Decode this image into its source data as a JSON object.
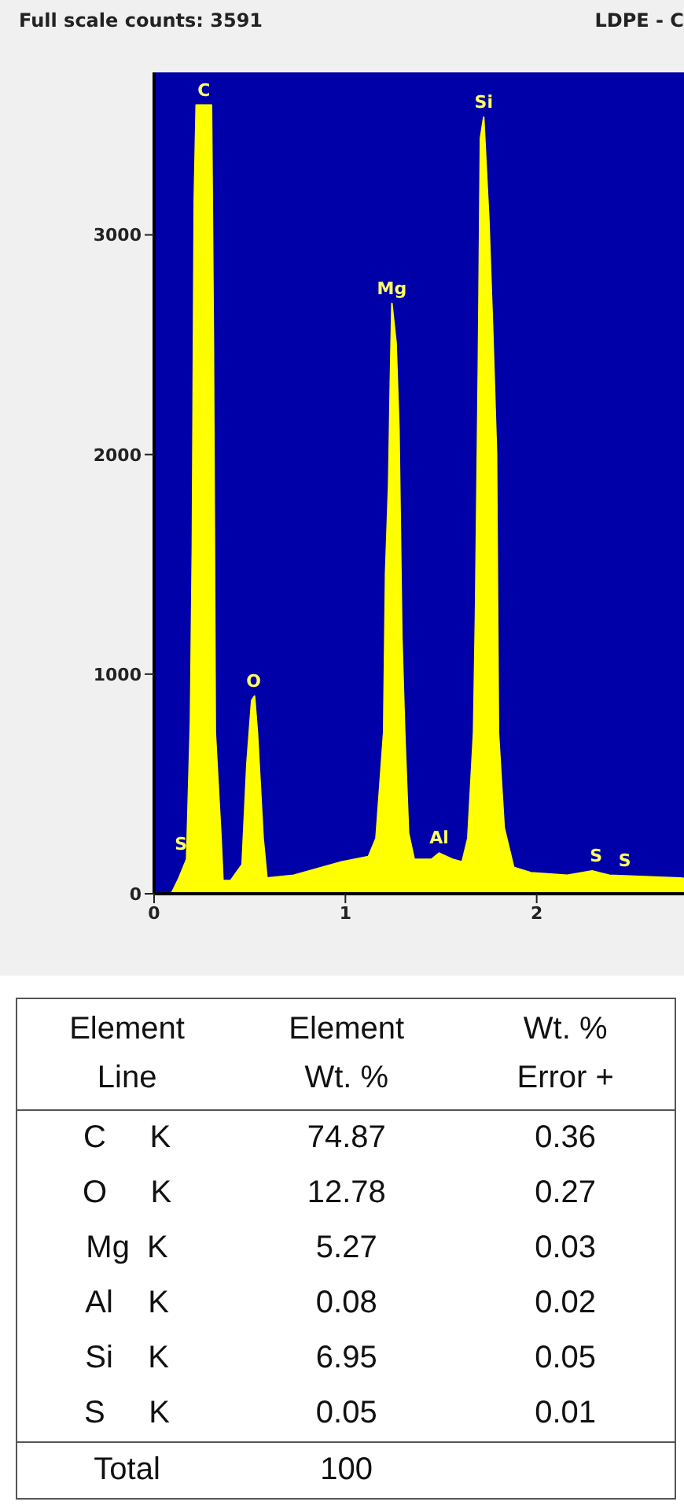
{
  "chart_data": [
    {
      "type": "area",
      "title": "Full scale counts: 3591",
      "subtitle": "LDPE - C",
      "x": [
        0.09,
        0.13,
        0.17,
        0.19,
        0.2,
        0.21,
        0.22,
        0.3,
        0.31,
        0.32,
        0.35,
        0.36,
        0.4,
        0.46,
        0.485,
        0.51,
        0.525,
        0.54,
        0.57,
        0.59,
        0.73,
        0.98,
        1.12,
        1.16,
        1.2,
        1.21,
        1.226,
        1.235,
        1.243,
        1.265,
        1.28,
        1.295,
        1.31,
        1.33,
        1.36,
        1.45,
        1.49,
        1.56,
        1.61,
        1.64,
        1.67,
        1.68,
        1.695,
        1.706,
        1.723,
        1.75,
        1.77,
        1.79,
        1.8,
        1.83,
        1.88,
        1.97,
        2.16,
        2.29,
        2.38,
        2.75,
        2.77
      ],
      "series": [
        {
          "color": "#ffff00",
          "values": [
            0,
            72,
            157,
            783,
            1578,
            3160,
            3591,
            3591,
            2500,
            735,
            253,
            60,
            60,
            133,
            590,
            880,
            900,
            735,
            253,
            72,
            84,
            145,
            169,
            253,
            735,
            1458,
            1864,
            2330,
            2688,
            2508,
            2115,
            1169,
            735,
            277,
            157,
            157,
            185,
            157,
            145,
            253,
            735,
            1265,
            2399,
            3440,
            3536,
            3066,
            2564,
            2003,
            735,
            301,
            120,
            96,
            84,
            104,
            84,
            72,
            70
          ]
        }
      ],
      "xlim": [
        0,
        2.77
      ],
      "xticks": [
        0,
        1,
        2
      ],
      "ylim": [
        0,
        3740
      ],
      "yticks": [
        0,
        1000,
        2000,
        3000
      ],
      "annotations": [
        {
          "text": "C",
          "x": 0.26,
          "y": 3591
        },
        {
          "text": "S",
          "x": 0.14,
          "y": 157
        },
        {
          "text": "O",
          "x": 0.52,
          "y": 900
        },
        {
          "text": "Mg",
          "x": 1.243,
          "y": 2688
        },
        {
          "text": "Al",
          "x": 1.49,
          "y": 185
        },
        {
          "text": "Si",
          "x": 1.723,
          "y": 3536
        },
        {
          "text": "S",
          "x": 2.31,
          "y": 104
        },
        {
          "text": "S",
          "x": 2.46,
          "y": 84
        }
      ]
    },
    {
      "type": "other",
      "annotations": [
        "Element\nLine",
        "Element\nWt. %",
        "Wt. %\nError +",
        "C     K",
        "74.87",
        "0.36",
        "O     K",
        "12.78",
        "0.27",
        "Mg  K",
        "5.27",
        "0.03",
        "Al    K",
        "0.08",
        "0.02",
        "Si    K",
        "6.95",
        "0.05",
        "S     K",
        "0.05",
        "0.01",
        "Total",
        "100"
      ]
    }
  ]
}
